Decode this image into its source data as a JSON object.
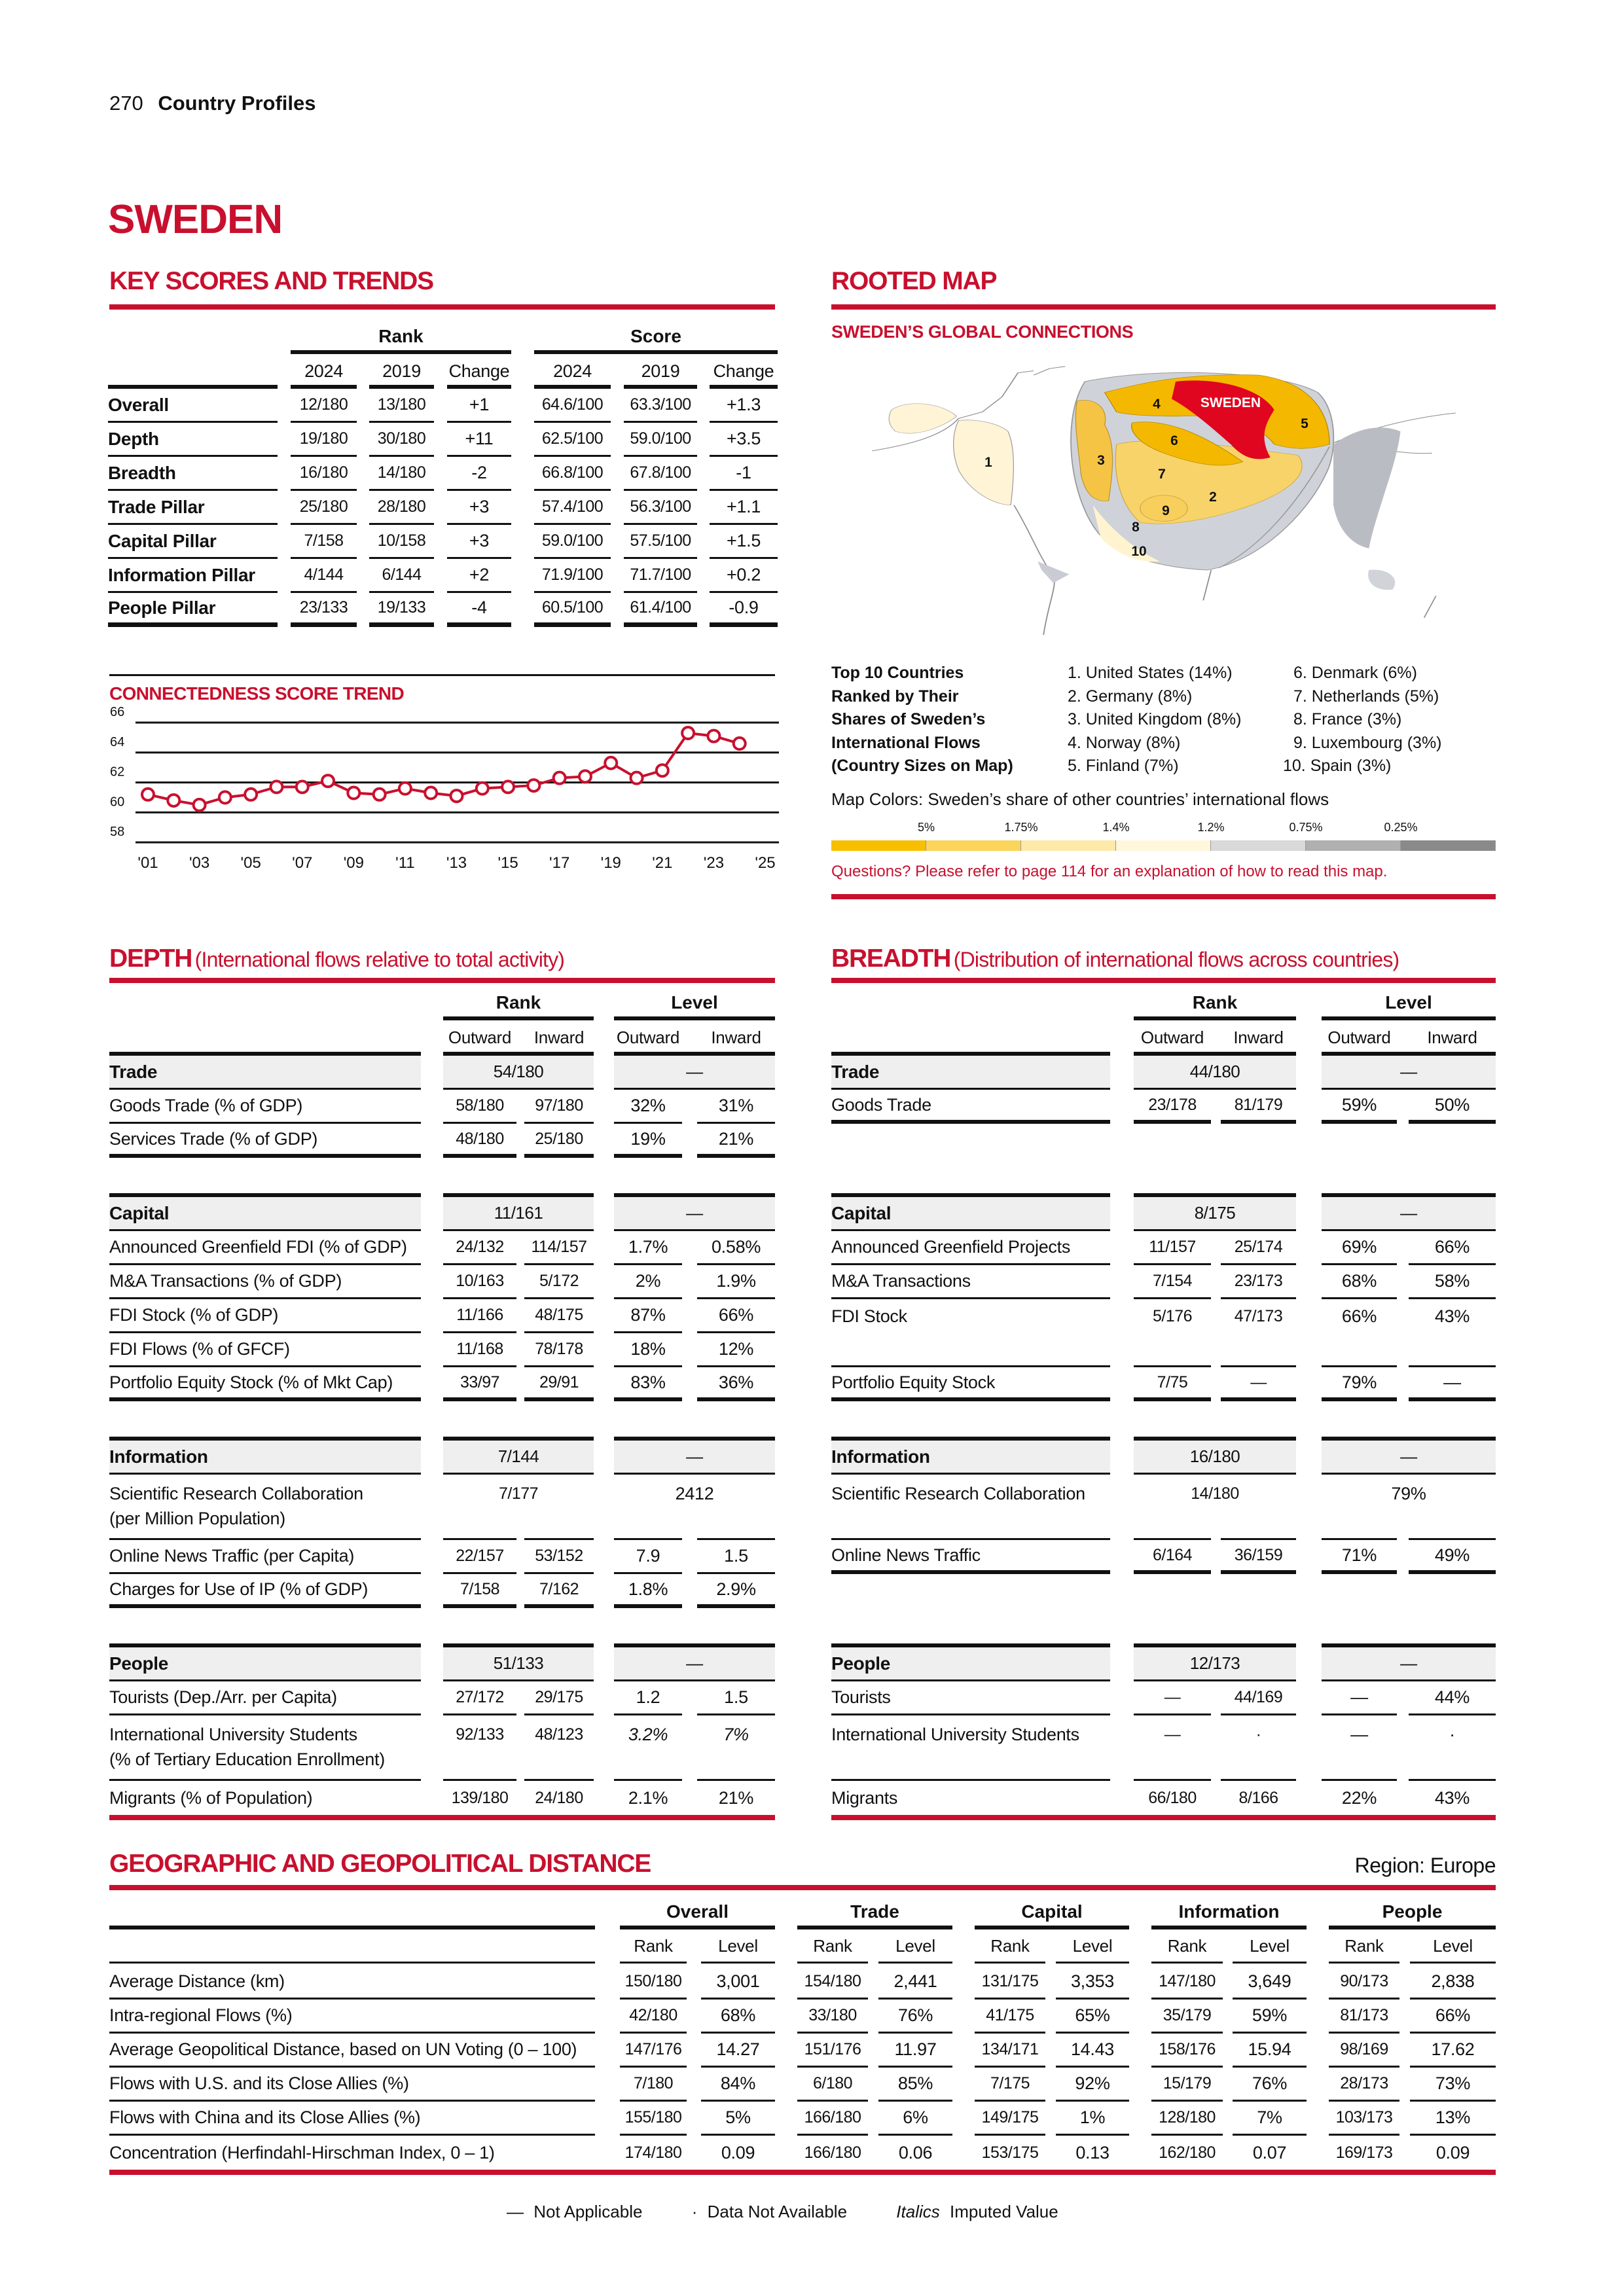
{
  "header": {
    "page_number": "270",
    "section": "Country Profiles"
  },
  "country": "SWEDEN",
  "key_scores": {
    "title": "KEY SCORES AND TRENDS",
    "rank_header": "Rank",
    "score_header": "Score",
    "columns": [
      "2024",
      "2019",
      "Change",
      "2024",
      "2019",
      "Change"
    ],
    "rows": [
      {
        "label": "Overall",
        "cells": [
          "12/180",
          "13/180",
          "+1",
          "64.6/100",
          "63.3/100",
          "+1.3"
        ]
      },
      {
        "label": "Depth",
        "cells": [
          "19/180",
          "30/180",
          "+11",
          "62.5/100",
          "59.0/100",
          "+3.5"
        ]
      },
      {
        "label": "Breadth",
        "cells": [
          "16/180",
          "14/180",
          "-2",
          "66.8/100",
          "67.8/100",
          "-1"
        ]
      },
      {
        "label": "Trade Pillar",
        "cells": [
          "25/180",
          "28/180",
          "+3",
          "57.4/100",
          "56.3/100",
          "+1.1"
        ]
      },
      {
        "label": "Capital Pillar",
        "cells": [
          "7/158",
          "10/158",
          "+3",
          "59.0/100",
          "57.5/100",
          "+1.5"
        ]
      },
      {
        "label": "Information Pillar",
        "cells": [
          "4/144",
          "6/144",
          "+2",
          "71.9/100",
          "71.7/100",
          "+0.2"
        ]
      },
      {
        "label": "People Pillar",
        "cells": [
          "23/133",
          "19/133",
          "-4",
          "60.5/100",
          "61.4/100",
          "-0.9"
        ]
      }
    ]
  },
  "chart_data": {
    "type": "line",
    "title": "CONNECTEDNESS SCORE TREND",
    "x": [
      2001,
      2002,
      2003,
      2004,
      2005,
      2006,
      2007,
      2008,
      2009,
      2010,
      2011,
      2012,
      2013,
      2014,
      2015,
      2016,
      2017,
      2018,
      2019,
      2020,
      2021,
      2022,
      2023,
      2024
    ],
    "values": [
      61.2,
      60.8,
      60.5,
      61.0,
      61.2,
      61.7,
      61.7,
      62.1,
      61.3,
      61.2,
      61.6,
      61.3,
      61.1,
      61.6,
      61.7,
      61.8,
      62.3,
      62.4,
      63.3,
      62.3,
      62.8,
      65.3,
      65.1,
      64.6
    ],
    "xlim": [
      2001,
      2025
    ],
    "ylim": [
      58,
      66
    ],
    "x_ticks": [
      "'01",
      "'03",
      "'05",
      "'07",
      "'09",
      "'11",
      "'13",
      "'15",
      "'17",
      "'19",
      "'21",
      "'23",
      "'25"
    ],
    "y_ticks": [
      "66",
      "64",
      "62",
      "60",
      "58"
    ],
    "grid": true,
    "color": "#c8102e"
  },
  "rooted_map": {
    "title": "ROOTED MAP",
    "subtitle": "SWEDEN’S GLOBAL CONNECTIONS",
    "map_label": "SWEDEN",
    "map_numbers": [
      "1",
      "2",
      "3",
      "4",
      "5",
      "6",
      "7",
      "8",
      "9",
      "10"
    ],
    "top10_label": [
      "Top 10 Countries",
      "Ranked by Their",
      "Shares of Sweden’s",
      "International Flows",
      "(Country Sizes on Map)"
    ],
    "top10_col1": [
      "1. United States (14%)",
      "2. Germany (8%)",
      "3. United Kingdom (8%)",
      "4. Norway (8%)",
      "5. Finland (7%)"
    ],
    "top10_col2": [
      "6. Denmark (6%)",
      "7. Netherlands (5%)",
      "8. France (3%)",
      "9. Luxembourg (3%)",
      "10. Spain (3%)"
    ],
    "colors_caption": "Map Colors: Sweden’s share of other countries’ international flows",
    "scale_labels": [
      "5%",
      "1.75%",
      "1.4%",
      "1.2%",
      "0.75%",
      "0.25%"
    ],
    "scale_colors": [
      "#f7bf00",
      "#fbd55a",
      "#fde9a8",
      "#fff6dc",
      "#d9d9d9",
      "#b0b0b0",
      "#8a8a8a"
    ],
    "note": "Questions? Please refer to page 114 for an explanation of how to read this map."
  },
  "depth": {
    "title": "DEPTH",
    "subtitle": "(International flows relative to total activity)",
    "rank_header": "Rank",
    "level_header": "Level",
    "sub": [
      "Outward",
      "Inward",
      "Outward",
      "Inward"
    ],
    "groups": [
      {
        "name": "Trade",
        "rank": "54/180",
        "level": "—",
        "rows": [
          {
            "label": "Goods Trade (% of GDP)",
            "cells": [
              "58/180",
              "97/180",
              "32%",
              "31%"
            ]
          },
          {
            "label": "Services Trade (% of GDP)",
            "cells": [
              "48/180",
              "25/180",
              "19%",
              "21%"
            ]
          }
        ]
      },
      {
        "name": "Capital",
        "rank": "11/161",
        "level": "—",
        "rows": [
          {
            "label": "Announced Greenfield FDI (% of GDP)",
            "cells": [
              "24/132",
              "114/157",
              "1.7%",
              "0.58%"
            ]
          },
          {
            "label": "M&A Transactions (% of GDP)",
            "cells": [
              "10/163",
              "5/172",
              "2%",
              "1.9%"
            ]
          },
          {
            "label": "FDI Stock (% of GDP)",
            "cells": [
              "11/166",
              "48/175",
              "87%",
              "66%"
            ]
          },
          {
            "label": "FDI Flows (% of GFCF)",
            "cells": [
              "11/168",
              "78/178",
              "18%",
              "12%"
            ]
          },
          {
            "label": "Portfolio Equity Stock (% of Mkt Cap)",
            "cells": [
              "33/97",
              "29/91",
              "83%",
              "36%"
            ]
          }
        ]
      },
      {
        "name": "Information",
        "rank": "7/144",
        "level": "—",
        "rows": [
          {
            "label": "Scientific Research Collaboration",
            "label2": "(per Million Population)",
            "rank_span": "7/177",
            "level_span": "2412"
          },
          {
            "label": "Online News Traffic (per Capita)",
            "cells": [
              "22/157",
              "53/152",
              "7.9",
              "1.5"
            ]
          },
          {
            "label": "Charges for Use of IP (% of GDP)",
            "cells": [
              "7/158",
              "7/162",
              "1.8%",
              "2.9%"
            ]
          }
        ]
      },
      {
        "name": "People",
        "rank": "51/133",
        "level": "—",
        "rows": [
          {
            "label": "Tourists (Dep./Arr. per Capita)",
            "cells": [
              "27/172",
              "29/175",
              "1.2",
              "1.5"
            ]
          },
          {
            "label": "International University Students",
            "label2": "(% of Tertiary Education Enrollment)",
            "cells": [
              "92/133",
              "48/123",
              "3.2%",
              "7%"
            ],
            "imputed": [
              false,
              false,
              true,
              true
            ]
          },
          {
            "label": "Migrants (% of Population)",
            "cells": [
              "139/180",
              "24/180",
              "2.1%",
              "21%"
            ]
          }
        ]
      }
    ]
  },
  "breadth": {
    "title": "BREADTH",
    "subtitle": "(Distribution of international flows across countries)",
    "rank_header": "Rank",
    "level_header": "Level",
    "sub": [
      "Outward",
      "Inward",
      "Outward",
      "Inward"
    ],
    "groups": [
      {
        "name": "Trade",
        "rank": "44/180",
        "level": "—",
        "rows": [
          {
            "label": "Goods Trade",
            "cells": [
              "23/178",
              "81/179",
              "59%",
              "50%"
            ]
          },
          {
            "blank": true
          }
        ]
      },
      {
        "name": "Capital",
        "rank": "8/175",
        "level": "—",
        "rows": [
          {
            "label": "Announced Greenfield Projects",
            "cells": [
              "11/157",
              "25/174",
              "69%",
              "66%"
            ]
          },
          {
            "label": "M&A Transactions",
            "cells": [
              "7/154",
              "23/173",
              "68%",
              "58%"
            ]
          },
          {
            "label": "FDI Stock",
            "cells": [
              "5/176",
              "47/173",
              "66%",
              "43%"
            ]
          },
          {
            "blank": true
          },
          {
            "label": "Portfolio Equity Stock",
            "cells": [
              "7/75",
              "—",
              "79%",
              "—"
            ]
          }
        ]
      },
      {
        "name": "Information",
        "rank": "16/180",
        "level": "—",
        "rows": [
          {
            "label": "Scientific Research Collaboration",
            "rank_span": "14/180",
            "level_span": "79%"
          },
          {
            "label": "Online News Traffic",
            "cells": [
              "6/164",
              "36/159",
              "71%",
              "49%"
            ]
          },
          {
            "blank": true
          }
        ]
      },
      {
        "name": "People",
        "rank": "12/173",
        "level": "—",
        "rows": [
          {
            "label": "Tourists",
            "cells": [
              "—",
              "44/169",
              "—",
              "44%"
            ]
          },
          {
            "label": "International University Students",
            "cells": [
              "—",
              "·",
              "—",
              "·"
            ]
          },
          {
            "label": "Migrants",
            "cells": [
              "66/180",
              "8/166",
              "22%",
              "43%"
            ]
          }
        ]
      }
    ]
  },
  "geo": {
    "title": "GEOGRAPHIC AND GEOPOLITICAL DISTANCE",
    "region": "Region: Europe",
    "groups": [
      "Overall",
      "Trade",
      "Capital",
      "Information",
      "People"
    ],
    "sub": [
      "Rank",
      "Level"
    ],
    "rows": [
      {
        "label": "Average Distance (km)",
        "cells": [
          "150/180",
          "3,001",
          "154/180",
          "2,441",
          "131/175",
          "3,353",
          "147/180",
          "3,649",
          "90/173",
          "2,838"
        ]
      },
      {
        "label": "Intra-regional Flows (%)",
        "cells": [
          "42/180",
          "68%",
          "33/180",
          "76%",
          "41/175",
          "65%",
          "35/179",
          "59%",
          "81/173",
          "66%"
        ]
      },
      {
        "label": "Average Geopolitical Distance, based on UN Voting (0 – 100)",
        "cells": [
          "147/176",
          "14.27",
          "151/176",
          "11.97",
          "134/171",
          "14.43",
          "158/176",
          "15.94",
          "98/169",
          "17.62"
        ]
      },
      {
        "label": "Flows with U.S. and its Close Allies (%)",
        "cells": [
          "7/180",
          "84%",
          "6/180",
          "85%",
          "7/175",
          "92%",
          "15/179",
          "76%",
          "28/173",
          "73%"
        ]
      },
      {
        "label": "Flows with China and its Close Allies (%)",
        "cells": [
          "155/180",
          "5%",
          "166/180",
          "6%",
          "149/175",
          "1%",
          "128/180",
          "7%",
          "103/173",
          "13%"
        ]
      },
      {
        "label": "Concentration (Herfindahl-Hirschman Index, 0 – 1)",
        "cells": [
          "174/180",
          "0.09",
          "166/180",
          "0.06",
          "153/175",
          "0.13",
          "162/180",
          "0.07",
          "169/173",
          "0.09"
        ]
      }
    ]
  },
  "legend": {
    "na_symbol": "—",
    "na": "Not Applicable",
    "dna_symbol": "·",
    "dna": "Data Not Available",
    "italics": "Italics",
    "imputed": "Imputed Value"
  }
}
